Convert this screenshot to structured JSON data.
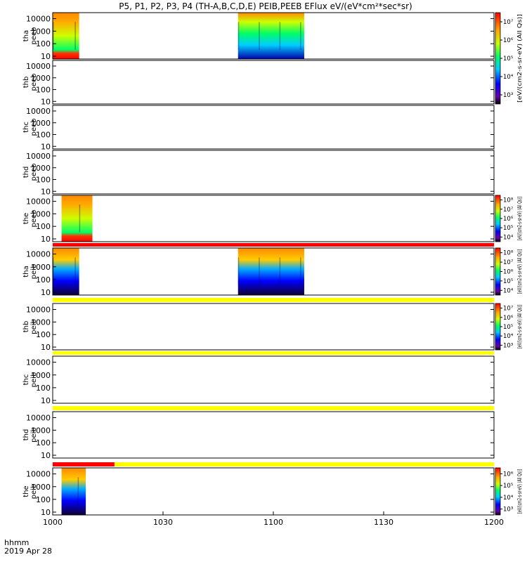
{
  "chart_data": {
    "type": "heatmap",
    "title": "P5, P1, P2, P3, P4 (TH-A,B,C,D,E) PEIB,PEEB EFlux eV/(eV*cm²*sec*sr)",
    "x_axis": {
      "ticks": [
        "1000",
        "1030",
        "1100",
        "1130",
        "1200"
      ],
      "label_top": "hhmm",
      "label_bottom": "2019 Apr 28"
    },
    "y_axis": {
      "scale": "log",
      "range": [
        6,
        30000
      ],
      "ticks": [
        "10",
        "100",
        "1000",
        "10000"
      ]
    },
    "panels": [
      {
        "probe": "tha",
        "instrument": "peeb",
        "data_intervals": [
          [
            0,
            0.06
          ],
          [
            0.42,
            0.57
          ]
        ],
        "colorbar": "a"
      },
      {
        "probe": "thb",
        "instrument": "peeb",
        "data_intervals": []
      },
      {
        "probe": "thc",
        "instrument": "peeb",
        "data_intervals": []
      },
      {
        "probe": "thd",
        "instrument": "peeb",
        "data_intervals": []
      },
      {
        "probe": "the",
        "instrument": "peeb",
        "data_intervals": [
          [
            0.02,
            0.09
          ]
        ],
        "colorbar": "b"
      },
      {
        "probe": "tha",
        "instrument": "peib",
        "data_intervals": [
          [
            0,
            0.06
          ],
          [
            0.42,
            0.57
          ]
        ],
        "colorbar": "c",
        "flag_bar": [
          {
            "from": 0,
            "to": 1,
            "color": "#ff0000"
          }
        ]
      },
      {
        "probe": "thb",
        "instrument": "peib",
        "data_intervals": [],
        "colorbar": "d",
        "flag_bar": [
          {
            "from": 0,
            "to": 1,
            "color": "#ffff00"
          }
        ]
      },
      {
        "probe": "thc",
        "instrument": "peib",
        "data_intervals": [],
        "flag_bar": [
          {
            "from": 0,
            "to": 1,
            "color": "#ffff00"
          }
        ]
      },
      {
        "probe": "thd",
        "instrument": "peib",
        "data_intervals": [],
        "flag_bar": [
          {
            "from": 0,
            "to": 1,
            "color": "#ffff00"
          }
        ]
      },
      {
        "probe": "the",
        "instrument": "peib",
        "data_intervals": [
          [
            0.02,
            0.075
          ]
        ],
        "colorbar": "e",
        "flag_bar": [
          {
            "from": 0,
            "to": 0.14,
            "color": "#ff0000"
          },
          {
            "from": 0.14,
            "to": 1,
            "color": "#ffff00"
          }
        ]
      }
    ],
    "colorbars": {
      "a": {
        "ticks": [
          "10³",
          "10⁴",
          "10⁵",
          "10⁶",
          "10⁷"
        ],
        "label": "[eV/(cm2-s-sr-eV) (All Qs)]"
      },
      "b": {
        "ticks": [
          "10⁴",
          "10⁵",
          "10⁶",
          "10⁷",
          "10⁸"
        ],
        "label": "[eV/(cm2-s-sr-eV) (All Qs)]"
      },
      "c": {
        "ticks": [
          "10⁴",
          "10⁵",
          "10⁶",
          "10⁷",
          "10⁸"
        ],
        "label": "[eV/(cm2-s-sr-eV) (All Qs)]"
      },
      "d": {
        "ticks": [
          "10³",
          "10⁴",
          "10⁵",
          "10⁶",
          "10⁷"
        ],
        "label": "[eV/(cm2-s-sr-eV) (All Qs)]"
      },
      "e": {
        "ticks": [
          "10³",
          "10⁴",
          "10⁵",
          "10⁶"
        ],
        "label": "[eV/(cm2-s-sr-eV) (All Qs)]"
      }
    }
  }
}
